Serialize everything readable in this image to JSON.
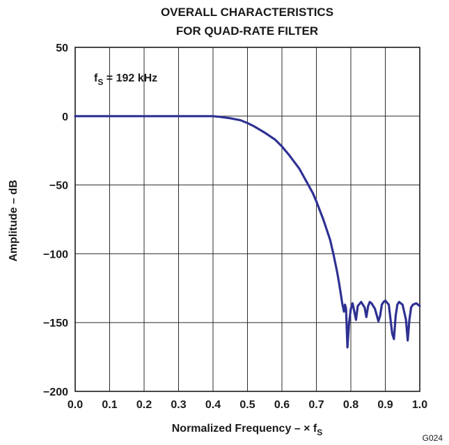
{
  "chart_data": {
    "type": "line",
    "title_lines": [
      "OVERALL CHARACTERISTICS",
      "FOR QUAD-RATE FILTER"
    ],
    "ylabel": "Amplitude – dB",
    "xlabel": {
      "text": "Normalized Frequency – × f",
      "subscript": "S"
    },
    "annotation": {
      "text": "f",
      "subscript": "S",
      "suffix": " = 192 kHz"
    },
    "figure_code": "G024",
    "xlim": [
      0.0,
      1.0
    ],
    "ylim": [
      -200,
      50
    ],
    "x_ticks": [
      0.0,
      0.1,
      0.2,
      0.3,
      0.4,
      0.5,
      0.6,
      0.7,
      0.8,
      0.9,
      1.0
    ],
    "x_tick_labels": [
      "0.0",
      "0.1",
      "0.2",
      "0.3",
      "0.4",
      "0.5",
      "0.6",
      "0.7",
      "0.8",
      "0.9",
      "1.0"
    ],
    "y_ticks": [
      50,
      0,
      -50,
      -100,
      -150,
      -200
    ],
    "y_tick_labels": [
      "50",
      "0",
      "−50",
      "−100",
      "−150",
      "−200"
    ],
    "grid": true,
    "series": [
      {
        "color": "#2e3192",
        "x": [
          0.0,
          0.1,
          0.2,
          0.3,
          0.4,
          0.42,
          0.45,
          0.48,
          0.5,
          0.52,
          0.55,
          0.58,
          0.6,
          0.62,
          0.65,
          0.67,
          0.69,
          0.7,
          0.72,
          0.74,
          0.75,
          0.76,
          0.765,
          0.77,
          0.775,
          0.78,
          0.783,
          0.786,
          0.79,
          0.795,
          0.8,
          0.805,
          0.81,
          0.815,
          0.82,
          0.83,
          0.84,
          0.845,
          0.85,
          0.855,
          0.86,
          0.87,
          0.88,
          0.885,
          0.89,
          0.895,
          0.9,
          0.91,
          0.92,
          0.925,
          0.93,
          0.935,
          0.94,
          0.95,
          0.96,
          0.965,
          0.97,
          0.975,
          0.98,
          0.99,
          1.0
        ],
        "y": [
          0,
          0,
          0,
          0,
          0,
          -0.5,
          -1.5,
          -3,
          -5,
          -7.5,
          -12,
          -17,
          -22,
          -28,
          -38,
          -47,
          -56,
          -62,
          -75,
          -90,
          -101,
          -113,
          -120,
          -128,
          -136,
          -142,
          -137,
          -140,
          -168,
          -150,
          -140,
          -136,
          -142,
          -148,
          -138,
          -135,
          -139,
          -146,
          -138,
          -135,
          -136,
          -140,
          -149,
          -145,
          -137,
          -135,
          -134,
          -137,
          -158,
          -162,
          -145,
          -137,
          -135,
          -137,
          -148,
          -163,
          -148,
          -139,
          -137,
          -136,
          -138
        ]
      }
    ]
  }
}
